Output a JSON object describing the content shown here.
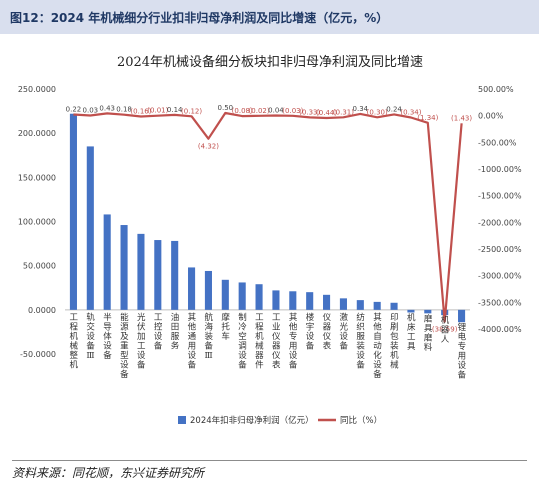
{
  "figure_title": "图12：2024 年机械细分行业扣非归母净利润及同比增速（亿元，%）",
  "source": "资料来源：同花顺，东兴证券研究所",
  "chart_data": {
    "type": "bar",
    "title": "2024年机械设备细分板块扣非归母净利润及同比增速",
    "categories": [
      "工程机械整机",
      "轨交设备Ⅲ",
      "半导体设备",
      "能源及重型设备",
      "光伏加工设备",
      "工控设备",
      "油田服务",
      "其他通用设备",
      "航海装备Ⅲ",
      "摩托车",
      "制冷空调设备",
      "工程机械器件",
      "工业仪器仪表",
      "其他专用设备",
      "楼宇设备",
      "仪器仪表",
      "激光设备",
      "纺织服装设备",
      "其他自动化设备",
      "印刷包装机械",
      "机床工具",
      "磨具磨料",
      "机器人",
      "锂电专用设备"
    ],
    "series": [
      {
        "name": "2024年扣非归母净利润（亿元）",
        "axis": "left",
        "color": "#4472c4",
        "values": [
          222,
          185,
          108,
          96,
          86,
          79,
          78,
          48,
          44,
          34,
          31,
          29,
          22,
          21,
          20,
          17,
          13,
          11,
          9,
          8,
          -3,
          -4,
          -6,
          -14
        ]
      },
      {
        "name": "同比（%）",
        "axis": "right",
        "color": "#c0504d",
        "values": [
          22,
          3,
          43,
          18,
          -16,
          -1,
          14,
          -12,
          -432,
          50,
          -8,
          -2,
          4,
          -3,
          -33,
          -44,
          -31,
          34,
          -30,
          24,
          -34,
          -134,
          -3859,
          -143
        ],
        "labels": [
          "0.22",
          "0.03",
          "0.43",
          "0.18",
          "(0.16)",
          "(0.01)",
          "0.14",
          "(0.12)",
          "(4.32)",
          "0.50",
          "(0.08)",
          "(0.02)",
          "0.04",
          "(0.03)",
          "(0.33)",
          "(0.44)",
          "(0.31)",
          "0.34",
          "(0.30)",
          "0.24",
          "(0.34)",
          "(1.34)",
          "(38.59)",
          "(1.43)"
        ]
      }
    ],
    "ylim_left": [
      -50,
      250
    ],
    "yticks_left": [
      "-50.0000",
      "0.0000",
      "50.0000",
      "100.0000",
      "150.0000",
      "200.0000",
      "250.0000"
    ],
    "ylim_right": [
      -4000,
      500
    ],
    "yticks_right": [
      "-4000.00%",
      "-3500.00%",
      "-3000.00%",
      "-2500.00%",
      "-2000.00%",
      "-1500.00%",
      "-1000.00%",
      "-500.00%",
      "0.00%",
      "500.00%"
    ],
    "legend_position": "bottom",
    "grid": false
  }
}
